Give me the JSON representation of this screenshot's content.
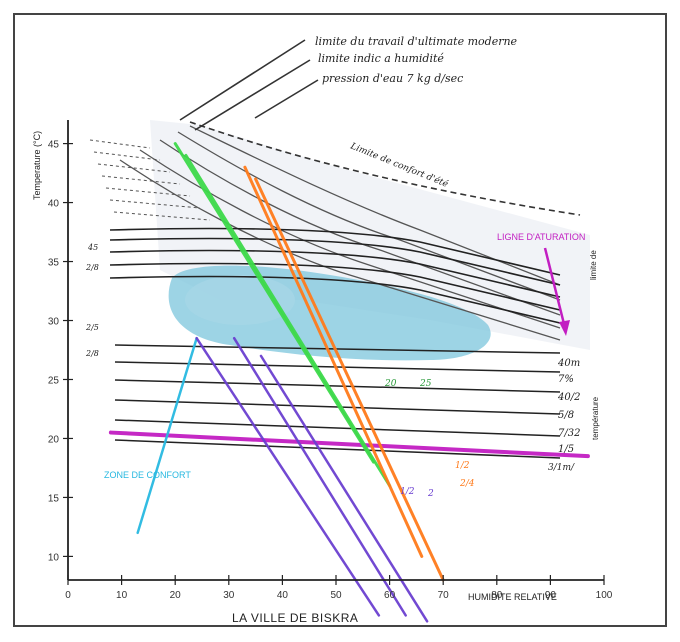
{
  "chart_data": {
    "type": "line",
    "title": "",
    "caption": "LA VILLE DE BISKRA",
    "xlabel": "HUMIDITE RELATIVE",
    "ylabel": "Temperature (°C)",
    "x_ticks": [
      "0",
      "10",
      "20",
      "30",
      "40",
      "50",
      "60",
      "70",
      "80",
      "90",
      "100"
    ],
    "y_ticks": [
      "10",
      "15",
      "20",
      "25",
      "30",
      "35",
      "40",
      "45"
    ],
    "xlim": [
      0,
      100
    ],
    "ylim": [
      8,
      47
    ],
    "top_notes": [
      "limite du travail d'ultimate moderne",
      "limite indic a humidité",
      "pression d'eau 7 kg d/sec"
    ],
    "upper_label": "Limite de confort d'été",
    "saturation_label": "LIGNE D'ATURATION",
    "contact_label": "ZONE DE CONFORT",
    "right_labels": [
      "40m",
      "7%",
      "40/2",
      "5/8",
      "7/32",
      "1/5"
    ],
    "right_labels_bottom": "3/1m/",
    "right_side_label_top": "limite de",
    "right_side_label_bottom": "température",
    "mid_labels": [
      "20",
      "25"
    ],
    "orange_labels": [
      "1/2",
      "2/4"
    ],
    "purple_end_labels": [
      "1/2",
      "2"
    ],
    "left_small_labels": [
      "45",
      "2/8",
      "2/5",
      "2/8"
    ],
    "colors": {
      "saturation": "#c21ec2",
      "green": "#3dd94a",
      "cyan": "#27b8e0",
      "purple": "#6a3fd0",
      "orange": "#ff7a1a",
      "comfort_zone": "#7cc5dc",
      "background_zone": "#eef1f6"
    },
    "series": [
      {
        "name": "",
        "kind": "saturation",
        "x": [
          8,
          97
        ],
        "y": [
          20.5,
          18.5
        ]
      },
      {
        "name": "",
        "kind": "green",
        "x": [
          20,
          57
        ],
        "y": [
          45,
          18
        ]
      },
      {
        "name": "",
        "kind": "green",
        "x": [
          22,
          60
        ],
        "y": [
          44,
          16
        ]
      },
      {
        "name": "",
        "kind": "cyan",
        "x": [
          24,
          13
        ],
        "y": [
          28.5,
          12
        ]
      },
      {
        "name": "",
        "kind": "purple",
        "x": [
          24,
          58
        ],
        "y": [
          28.5,
          5
        ]
      },
      {
        "name": "",
        "kind": "purple",
        "x": [
          31,
          63
        ],
        "y": [
          28.5,
          5
        ]
      },
      {
        "name": "",
        "kind": "purple",
        "x": [
          36,
          67
        ],
        "y": [
          27,
          4.5
        ]
      },
      {
        "name": "",
        "kind": "orange",
        "x": [
          33,
          66
        ],
        "y": [
          43,
          10
        ]
      },
      {
        "name": "",
        "kind": "orange",
        "x": [
          35,
          70
        ],
        "y": [
          42,
          8
        ]
      }
    ]
  }
}
